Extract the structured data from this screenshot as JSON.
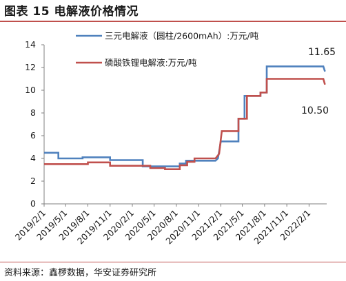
{
  "title": "图表 15  电解液价格情况",
  "source": "资料来源：鑫椤数据，华安证券研究所",
  "chart_data": {
    "type": "line",
    "x_tick_labels": [
      "2019/2/1",
      "2019/5/1",
      "2019/8/1",
      "2019/11/1",
      "2020/2/1",
      "2020/5/1",
      "2020/8/1",
      "2020/11/1",
      "2021/2/1",
      "2021/5/1",
      "2021/8/1",
      "2021/11/1",
      "2022/2/1"
    ],
    "x_range": [
      "2019/2/1",
      "2022/4/15"
    ],
    "ylim": [
      0,
      14
    ],
    "yticks": [
      0,
      2,
      4,
      6,
      8,
      10,
      12,
      14
    ],
    "legend_position": "top-center",
    "grid": false,
    "series": [
      {
        "name": "三元电解液（圆柱/2600mAh）:万元/吨",
        "color": "#4f81bd",
        "end_label": "11.65",
        "points": [
          [
            "2019/2/1",
            4.5
          ],
          [
            "2019/4/1",
            4.5
          ],
          [
            "2019/4/1",
            4.0
          ],
          [
            "2019/7/10",
            4.0
          ],
          [
            "2019/7/10",
            4.1
          ],
          [
            "2019/11/1",
            4.1
          ],
          [
            "2019/11/1",
            3.85
          ],
          [
            "2020/3/15",
            3.85
          ],
          [
            "2020/3/15",
            3.3
          ],
          [
            "2020/8/15",
            3.3
          ],
          [
            "2020/8/15",
            3.55
          ],
          [
            "2020/9/10",
            3.55
          ],
          [
            "2020/9/10",
            3.8
          ],
          [
            "2021/1/10",
            3.8
          ],
          [
            "2021/1/20",
            4.0
          ],
          [
            "2021/2/1",
            5.5
          ],
          [
            "2021/4/15",
            5.5
          ],
          [
            "2021/4/15",
            7.5
          ],
          [
            "2021/5/10",
            7.5
          ],
          [
            "2021/5/10",
            9.5
          ],
          [
            "2021/7/15",
            9.5
          ],
          [
            "2021/7/15",
            9.8
          ],
          [
            "2021/8/10",
            9.8
          ],
          [
            "2021/8/10",
            12.1
          ],
          [
            "2022/4/1",
            12.1
          ],
          [
            "2022/4/8",
            11.65
          ]
        ]
      },
      {
        "name": "磷酸铁锂电解液:万元/吨",
        "color": "#c0504d",
        "end_label": "10.50",
        "points": [
          [
            "2019/2/1",
            3.5
          ],
          [
            "2019/8/1",
            3.5
          ],
          [
            "2019/8/1",
            3.65
          ],
          [
            "2019/11/1",
            3.65
          ],
          [
            "2019/11/1",
            3.35
          ],
          [
            "2020/4/15",
            3.35
          ],
          [
            "2020/4/15",
            3.15
          ],
          [
            "2020/6/15",
            3.15
          ],
          [
            "2020/6/15",
            3.05
          ],
          [
            "2020/8/15",
            3.05
          ],
          [
            "2020/8/15",
            3.4
          ],
          [
            "2020/9/15",
            3.4
          ],
          [
            "2020/9/15",
            3.7
          ],
          [
            "2020/10/15",
            3.7
          ],
          [
            "2020/10/15",
            4.0
          ],
          [
            "2021/1/10",
            4.0
          ],
          [
            "2021/1/25",
            4.4
          ],
          [
            "2021/2/5",
            6.4
          ],
          [
            "2021/4/15",
            6.4
          ],
          [
            "2021/4/15",
            7.5
          ],
          [
            "2021/5/20",
            7.5
          ],
          [
            "2021/5/20",
            9.5
          ],
          [
            "2021/7/15",
            9.5
          ],
          [
            "2021/7/15",
            9.8
          ],
          [
            "2021/8/10",
            9.8
          ],
          [
            "2021/8/10",
            11.0
          ],
          [
            "2022/4/1",
            11.0
          ],
          [
            "2022/4/8",
            10.5
          ]
        ]
      }
    ]
  }
}
